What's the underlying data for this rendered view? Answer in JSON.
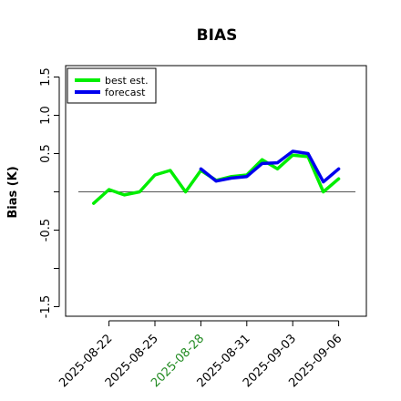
{
  "chart_data": {
    "type": "line",
    "title": "BIAS",
    "xlabel": "",
    "ylabel": "Bias (K)",
    "ylim": [
      -1.5,
      1.5
    ],
    "xlim": [
      "2025-08-20",
      "2025-09-07"
    ],
    "yticks": [
      "-1.5",
      "-0.5",
      "0.5",
      "1.0",
      "1.5"
    ],
    "ytick_values": [
      -1.5,
      -0.5,
      0.5,
      1.0,
      1.5
    ],
    "xticks": [
      "2025-08-22",
      "2025-08-25",
      "2025-08-28",
      "2025-08-31",
      "2025-09-03",
      "2025-09-06"
    ],
    "highlight_tick": "2025-08-28",
    "highlight_color": "#228b22",
    "reference_line": 0.0,
    "grid": false,
    "legend_position": "top-left",
    "series": [
      {
        "name": "best est.",
        "color": "#00ee00",
        "x": [
          "2025-08-21",
          "2025-08-22",
          "2025-08-23",
          "2025-08-24",
          "2025-08-25",
          "2025-08-26",
          "2025-08-27",
          "2025-08-28",
          "2025-08-29",
          "2025-08-30",
          "2025-08-31",
          "2025-09-01",
          "2025-09-02",
          "2025-09-03",
          "2025-09-04",
          "2025-09-05",
          "2025-09-06"
        ],
        "y": [
          -0.15,
          0.03,
          -0.04,
          0.0,
          0.22,
          0.28,
          0.0,
          0.28,
          0.15,
          0.2,
          0.22,
          0.42,
          0.3,
          0.48,
          0.46,
          0.0,
          0.17
        ]
      },
      {
        "name": "forecast",
        "color": "#0000ee",
        "x": [
          "2025-08-28",
          "2025-08-29",
          "2025-08-30",
          "2025-08-31",
          "2025-09-01",
          "2025-09-02",
          "2025-09-03",
          "2025-09-04",
          "2025-09-05",
          "2025-09-06"
        ],
        "y": [
          0.3,
          0.14,
          0.18,
          0.2,
          0.37,
          0.38,
          0.53,
          0.5,
          0.13,
          0.3
        ]
      }
    ]
  }
}
